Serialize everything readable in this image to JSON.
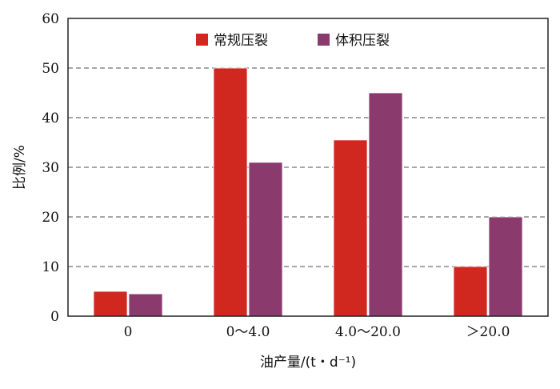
{
  "chart_data": {
    "type": "bar",
    "categories": [
      "0",
      "0～4.0",
      "4.0～20.0",
      "＞20.0"
    ],
    "series": [
      {
        "name": "常规压裂",
        "color": "#d0271f",
        "values": [
          5.0,
          50.0,
          35.5,
          10.0
        ]
      },
      {
        "name": "体积压裂",
        "color": "#8b3a6e",
        "values": [
          4.5,
          31.0,
          45.0,
          20.0
        ]
      }
    ],
    "xlabel": "油产量/(t・d⁻¹)",
    "ylabel": "比例/%",
    "ylim": [
      0,
      60
    ],
    "yticks": [
      "0",
      "10",
      "20",
      "30",
      "40",
      "50",
      "60"
    ],
    "grid": "horizontal dashed",
    "legend": "top-center"
  }
}
